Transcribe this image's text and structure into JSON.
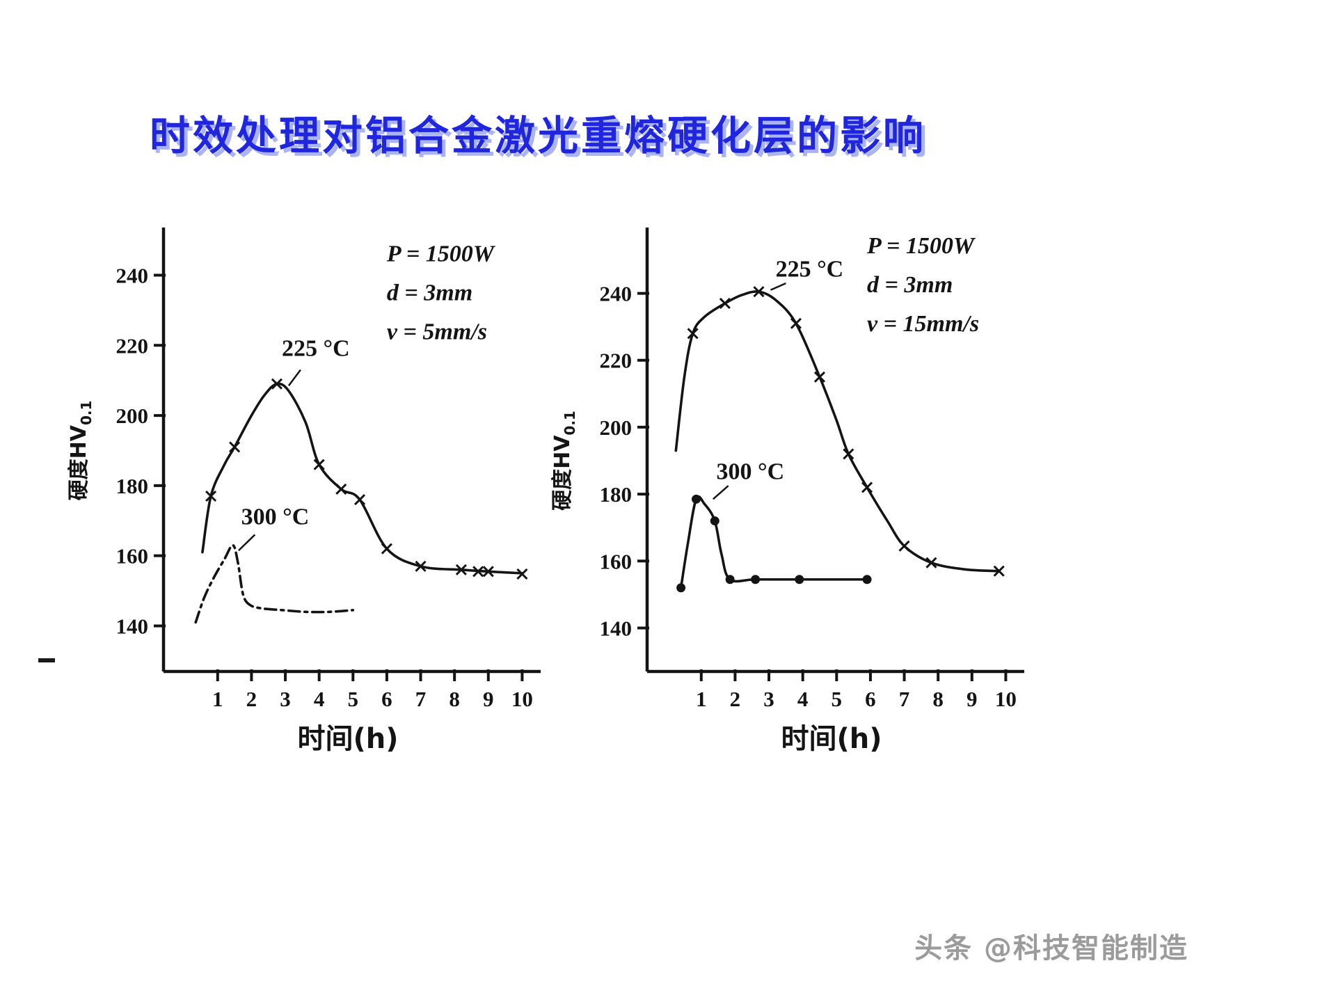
{
  "title": "时效处理对铝合金激光重熔硬化层的影响",
  "watermark": "头条 @科技智能制造",
  "colors": {
    "title": "#2026dd",
    "title_shadow": "#aab4f2",
    "ink": "#141414",
    "watermark": "#9b9b9b",
    "background": "#ffffff"
  },
  "chart_data": [
    {
      "type": "line",
      "title": "",
      "xlabel": "时间(h)",
      "ylabel": "硬度HV",
      "ylabel_sub": "0.1",
      "xlim": [
        -0.6,
        10.3
      ],
      "ylim": [
        127,
        252
      ],
      "xticks": [
        1,
        2,
        3,
        4,
        5,
        6,
        7,
        8,
        9,
        10
      ],
      "yticks": [
        140,
        160,
        180,
        200,
        220,
        240
      ],
      "grid": false,
      "params": {
        "lines": [
          "P = 1500W",
          "d = 3mm",
          "v = 5mm/s"
        ],
        "x": 6.0,
        "y": 244
      },
      "series": [
        {
          "name": "225 °C",
          "line": "solid",
          "marker": "x",
          "points": [
            [
              0.55,
              161
            ],
            [
              0.8,
              177
            ],
            [
              1.2,
              186
            ],
            [
              1.5,
              191
            ],
            [
              2.0,
              200
            ],
            [
              2.4,
              206
            ],
            [
              2.75,
              209
            ],
            [
              3.1,
              207
            ],
            [
              3.6,
              198
            ],
            [
              4.0,
              186
            ],
            [
              4.65,
              179
            ],
            [
              5.2,
              176
            ],
            [
              6.0,
              162
            ],
            [
              7.0,
              157
            ],
            [
              8.2,
              156
            ],
            [
              9.0,
              155.5
            ],
            [
              10.0,
              155
            ]
          ],
          "marker_points": [
            [
              0.8,
              177
            ],
            [
              1.5,
              191
            ],
            [
              2.75,
              209
            ],
            [
              4.0,
              186
            ],
            [
              4.65,
              179
            ],
            [
              5.2,
              176
            ],
            [
              6.0,
              162
            ],
            [
              7.0,
              157
            ],
            [
              8.2,
              156
            ],
            [
              8.7,
              155.5
            ],
            [
              9.0,
              155.5
            ],
            [
              10.0,
              154.8
            ]
          ]
        },
        {
          "name": "300 °C",
          "line": "dashdot",
          "marker": "none",
          "points": [
            [
              0.35,
              141
            ],
            [
              0.6,
              148
            ],
            [
              0.9,
              154
            ],
            [
              1.2,
              159
            ],
            [
              1.45,
              163
            ],
            [
              1.6,
              158
            ],
            [
              1.75,
              149
            ],
            [
              1.95,
              146
            ],
            [
              2.3,
              145
            ],
            [
              2.9,
              144.5
            ],
            [
              3.6,
              144
            ],
            [
              4.3,
              144
            ],
            [
              5.0,
              144.5
            ]
          ],
          "marker_points": []
        }
      ],
      "labels": [
        {
          "text": "225 °C",
          "x": 3.9,
          "y": 217,
          "leader": [
            3.45,
            213,
            3.1,
            208.5
          ]
        },
        {
          "text": "300 °C",
          "x": 2.7,
          "y": 169,
          "leader": [
            2.1,
            166,
            1.62,
            161.5
          ]
        }
      ]
    },
    {
      "type": "line",
      "title": "",
      "xlabel": "时间(h)",
      "ylabel": "硬度HV",
      "ylabel_sub": "0.1",
      "xlim": [
        -0.6,
        10.3
      ],
      "ylim": [
        127,
        258
      ],
      "xticks": [
        1,
        2,
        3,
        4,
        5,
        6,
        7,
        8,
        9,
        10
      ],
      "yticks": [
        140,
        160,
        180,
        200,
        220,
        240
      ],
      "grid": false,
      "params": {
        "lines": [
          "P = 1500W",
          "d = 3mm",
          "v = 15mm/s"
        ],
        "x": 5.9,
        "y": 252
      },
      "series": [
        {
          "name": "225 °C",
          "line": "solid",
          "marker": "x",
          "points": [
            [
              0.25,
              193
            ],
            [
              0.5,
              215
            ],
            [
              0.75,
              228
            ],
            [
              1.1,
              233
            ],
            [
              1.7,
              237
            ],
            [
              2.2,
              239.5
            ],
            [
              2.7,
              240.5
            ],
            [
              3.2,
              238
            ],
            [
              3.8,
              231
            ],
            [
              4.5,
              215
            ],
            [
              5.0,
              202
            ],
            [
              5.35,
              192
            ],
            [
              5.9,
              182
            ],
            [
              6.5,
              172
            ],
            [
              7.0,
              164.5
            ],
            [
              7.8,
              159.5
            ],
            [
              8.8,
              157.5
            ],
            [
              9.8,
              157
            ]
          ],
          "marker_points": [
            [
              0.75,
              228
            ],
            [
              1.7,
              237
            ],
            [
              2.7,
              240.5
            ],
            [
              3.8,
              231
            ],
            [
              4.5,
              215
            ],
            [
              5.35,
              192
            ],
            [
              5.9,
              182
            ],
            [
              7.0,
              164.5
            ],
            [
              7.8,
              159.5
            ],
            [
              9.8,
              157
            ]
          ]
        },
        {
          "name": "300 °C",
          "line": "solid",
          "marker": "dot",
          "points": [
            [
              0.4,
              152
            ],
            [
              0.6,
              165
            ],
            [
              0.85,
              178.5
            ],
            [
              1.1,
              177
            ],
            [
              1.4,
              172
            ],
            [
              1.6,
              162
            ],
            [
              1.85,
              154.5
            ],
            [
              2.6,
              154.5
            ],
            [
              3.9,
              154.5
            ],
            [
              5.9,
              154.5
            ]
          ],
          "marker_points": [
            [
              0.4,
              152
            ],
            [
              0.85,
              178.5
            ],
            [
              1.4,
              172
            ],
            [
              1.85,
              154.5
            ],
            [
              2.6,
              154.5
            ],
            [
              3.9,
              154.5
            ],
            [
              5.9,
              154.5
            ]
          ]
        }
      ],
      "labels": [
        {
          "text": "225 °C",
          "x": 4.2,
          "y": 245,
          "leader": [
            3.5,
            243,
            3.05,
            241
          ]
        },
        {
          "text": "300 °C",
          "x": 2.45,
          "y": 184.5,
          "leader": [
            1.8,
            182.5,
            1.35,
            178.5
          ]
        }
      ]
    }
  ]
}
